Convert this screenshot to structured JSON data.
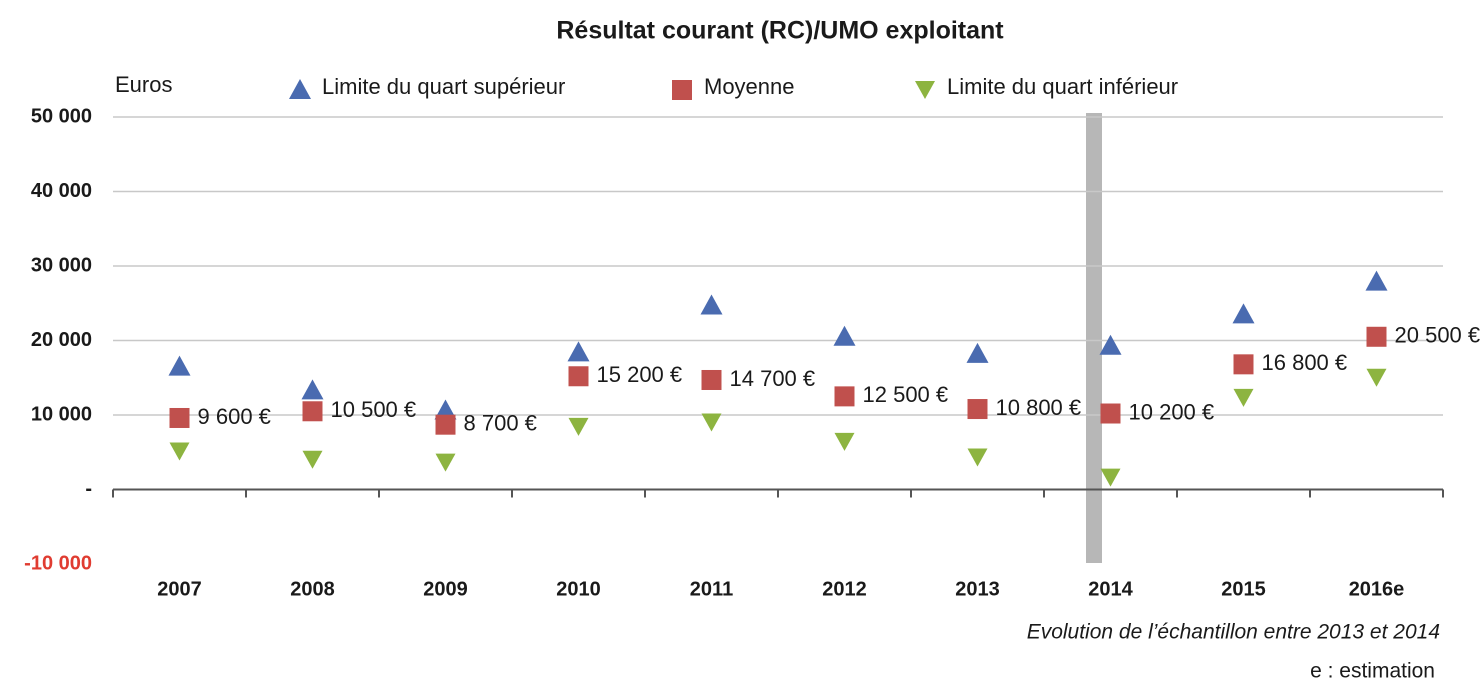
{
  "chart_data": {
    "type": "scatter",
    "title": "Résultat courant (RC)/UMO exploitant",
    "y_label": "Euros",
    "categories": [
      "2007",
      "2008",
      "2009",
      "2010",
      "2011",
      "2012",
      "2013",
      "2014",
      "2015",
      "2016e"
    ],
    "series": [
      {
        "name": "Limite du quart supérieur",
        "color": "#4a6bb0",
        "marker": "triangle-up",
        "values": [
          16500,
          13300,
          10600,
          18400,
          24700,
          20500,
          18200,
          19300,
          23500,
          27900
        ]
      },
      {
        "name": "Moyenne",
        "color": "#c0504d",
        "marker": "square",
        "values": [
          9600,
          10500,
          8700,
          15200,
          14700,
          12500,
          10800,
          10200,
          16800,
          20500
        ],
        "value_labels": [
          "9 600 €",
          "10 500 €",
          "8 700 €",
          "15 200 €",
          "14 700 €",
          "12 500 €",
          "10 800 €",
          "10 200 €",
          "16 800 €",
          "20 500 €"
        ]
      },
      {
        "name": "Limite du quart inférieur",
        "color": "#8db440",
        "marker": "triangle-down",
        "values": [
          5100,
          4000,
          3600,
          8400,
          9000,
          6400,
          4300,
          1600,
          12300,
          15000
        ]
      }
    ],
    "ylim": [
      -10000,
      50000
    ],
    "yticks": [
      {
        "value": -10000,
        "label": "-10 000"
      },
      {
        "value": 0,
        "label": "-"
      },
      {
        "value": 10000,
        "label": "10 000"
      },
      {
        "value": 20000,
        "label": "20 000"
      },
      {
        "value": 30000,
        "label": "30 000"
      },
      {
        "value": 40000,
        "label": "40 000"
      },
      {
        "value": 50000,
        "label": "50 000"
      }
    ],
    "negative_tick_color": "#e03c31",
    "grid": true,
    "annotations": [
      "Evolution de l’échantillon entre 2013 et 2014",
      "e : estimation"
    ]
  }
}
